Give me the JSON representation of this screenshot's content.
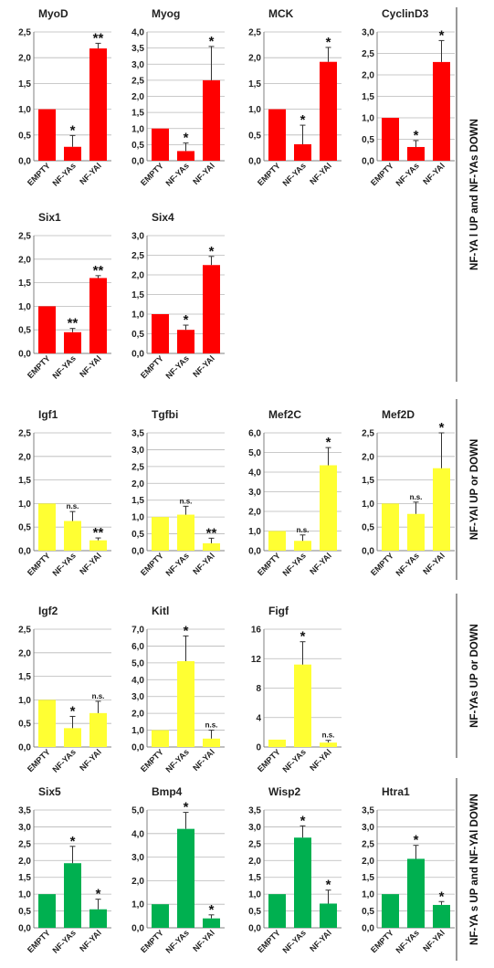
{
  "colors": {
    "red": "#ff0000",
    "yellow": "#ffff33",
    "green": "#00b050"
  },
  "groups": [
    "NF-YA l UP and NF-YAs DOWN",
    "NF-YAl UP or DOWN",
    "NF-YAs UP or DOWN",
    "NF-YA s UP and NF-YAl DOWN"
  ],
  "chart_data": [
    {
      "type": "bar",
      "title": "MyoD",
      "categories": [
        "EMPTY",
        "NF-YAs",
        "NF-YAl"
      ],
      "values": [
        1.0,
        0.27,
        2.18
      ],
      "errors": [
        0,
        0.22,
        0.1
      ],
      "sig": [
        "",
        "*",
        "**"
      ],
      "color": "red",
      "ylim": [
        0,
        2.5
      ],
      "yticks": [
        "0,0",
        "0,5",
        "1,0",
        "1,5",
        "2,0",
        "2,5"
      ]
    },
    {
      "type": "bar",
      "title": "Myog",
      "categories": [
        "EMPTY",
        "NF-YAs",
        "NF-YAl"
      ],
      "values": [
        1.0,
        0.3,
        2.5
      ],
      "errors": [
        0,
        0.25,
        1.05
      ],
      "sig": [
        "",
        "*",
        "*"
      ],
      "color": "red",
      "ylim": [
        0,
        4.0
      ],
      "yticks": [
        "0,0",
        "0,5",
        "1,0",
        "1,5",
        "2,0",
        "2,5",
        "3,0",
        "3,5",
        "4,0"
      ]
    },
    {
      "type": "bar",
      "title": "MCK",
      "categories": [
        "EMPTY",
        "NF-YAs",
        "NF-YAl"
      ],
      "values": [
        1.0,
        0.32,
        1.92
      ],
      "errors": [
        0,
        0.37,
        0.28
      ],
      "sig": [
        "",
        "*",
        "*"
      ],
      "color": "red",
      "ylim": [
        0,
        2.5
      ],
      "yticks": [
        "0,0",
        "0,5",
        "1,0",
        "1,5",
        "2,0",
        "2,5"
      ]
    },
    {
      "type": "bar",
      "title": "CyclinD3",
      "categories": [
        "EMPTY",
        "NF-YAs",
        "NF-YAl"
      ],
      "values": [
        1.0,
        0.32,
        2.3
      ],
      "errors": [
        0,
        0.15,
        0.5
      ],
      "sig": [
        "",
        "*",
        "*"
      ],
      "color": "red",
      "ylim": [
        0,
        3.0
      ],
      "yticks": [
        "0,0",
        "0,5",
        "1,0",
        "1,5",
        "2,0",
        "2,5",
        "3,0"
      ]
    },
    {
      "type": "bar",
      "title": "Six1",
      "categories": [
        "EMPTY",
        "NF-YAs",
        "NF-YAl"
      ],
      "values": [
        1.0,
        0.45,
        1.6
      ],
      "errors": [
        0,
        0.08,
        0.05
      ],
      "sig": [
        "",
        "**",
        "**"
      ],
      "color": "red",
      "ylim": [
        0,
        2.5
      ],
      "yticks": [
        "0,0",
        "0,5",
        "1,0",
        "1,5",
        "2,0",
        "2,5"
      ]
    },
    {
      "type": "bar",
      "title": "Six4",
      "categories": [
        "EMPTY",
        "NF-YAs",
        "NF-YAl"
      ],
      "values": [
        1.0,
        0.6,
        2.25
      ],
      "errors": [
        0,
        0.12,
        0.22
      ],
      "sig": [
        "",
        "*",
        "*"
      ],
      "color": "red",
      "ylim": [
        0,
        3.0
      ],
      "yticks": [
        "0,0",
        "0,5",
        "1,0",
        "1,5",
        "2,0",
        "2,5",
        "3,0"
      ]
    },
    {
      "type": "bar",
      "title": "Igf1",
      "categories": [
        "EMPTY",
        "NF-YAs",
        "NF-YAl"
      ],
      "values": [
        1.0,
        0.63,
        0.22
      ],
      "errors": [
        0,
        0.2,
        0.05
      ],
      "sig": [
        "",
        "n.s.",
        "**"
      ],
      "color": "yellow",
      "ylim": [
        0,
        2.5
      ],
      "yticks": [
        "0,0",
        "0,5",
        "1,0",
        "1,5",
        "2,0",
        "2,5"
      ]
    },
    {
      "type": "bar",
      "title": "Tgfbi",
      "categories": [
        "EMPTY",
        "NF-YAs",
        "NF-YAl"
      ],
      "values": [
        1.0,
        1.07,
        0.22
      ],
      "errors": [
        0,
        0.25,
        0.15
      ],
      "sig": [
        "",
        "n.s.",
        "**"
      ],
      "color": "yellow",
      "ylim": [
        0,
        3.5
      ],
      "yticks": [
        "0,0",
        "0,5",
        "1,0",
        "1,5",
        "2,0",
        "2,5",
        "3,0",
        "3,5"
      ]
    },
    {
      "type": "bar",
      "title": "Mef2C",
      "categories": [
        "EMPTY",
        "NF-YAs",
        "NF-YAl"
      ],
      "values": [
        1.0,
        0.5,
        4.35
      ],
      "errors": [
        0,
        0.3,
        0.9
      ],
      "sig": [
        "",
        "n.s.",
        "*"
      ],
      "color": "yellow",
      "ylim": [
        0,
        6.0
      ],
      "yticks": [
        "0,0",
        "1,0",
        "2,0",
        "3,0",
        "4,0",
        "5,0",
        "6,0"
      ]
    },
    {
      "type": "bar",
      "title": "Mef2D",
      "categories": [
        "EMPTY",
        "NF-YAs",
        "NF-YAl"
      ],
      "values": [
        1.0,
        0.78,
        1.75
      ],
      "errors": [
        0,
        0.25,
        0.75
      ],
      "sig": [
        "",
        "n.s.",
        "*"
      ],
      "color": "yellow",
      "ylim": [
        0,
        2.5
      ],
      "yticks": [
        "0,0",
        "0,5",
        "1,0",
        "1,5",
        "2,0",
        "2,5"
      ]
    },
    {
      "type": "bar",
      "title": "Igf2",
      "categories": [
        "EMPTY",
        "NF-YAs",
        "NF-YAl"
      ],
      "values": [
        1.0,
        0.4,
        0.72
      ],
      "errors": [
        0,
        0.25,
        0.25
      ],
      "sig": [
        "",
        "*",
        "n.s."
      ],
      "color": "yellow",
      "ylim": [
        0,
        2.5
      ],
      "yticks": [
        "0,0",
        "0,5",
        "1,0",
        "1,5",
        "2,0",
        "2,5"
      ]
    },
    {
      "type": "bar",
      "title": "Kitl",
      "categories": [
        "EMPTY",
        "NF-YAs",
        "NF-YAl"
      ],
      "values": [
        1.0,
        5.1,
        0.5
      ],
      "errors": [
        0,
        1.5,
        0.5
      ],
      "sig": [
        "",
        "*",
        "n.s."
      ],
      "color": "yellow",
      "ylim": [
        0,
        7.0
      ],
      "yticks": [
        "0,0",
        "1,0",
        "2,0",
        "3,0",
        "4,0",
        "5,0",
        "6,0",
        "7,0"
      ]
    },
    {
      "type": "bar",
      "title": "Figf",
      "categories": [
        "EMPTY",
        "NF-YAs",
        "NF-YAl"
      ],
      "values": [
        1.0,
        11.2,
        0.6
      ],
      "errors": [
        0,
        3.1,
        0.3
      ],
      "sig": [
        "",
        "*",
        "n.s."
      ],
      "color": "yellow",
      "ylim": [
        0,
        16
      ],
      "yticks": [
        "0",
        "4",
        "8",
        "12",
        "16"
      ]
    },
    {
      "type": "bar",
      "title": "Six5",
      "categories": [
        "EMPTY",
        "NF-YAs",
        "NF-YAl"
      ],
      "values": [
        1.0,
        1.92,
        0.55
      ],
      "errors": [
        0,
        0.5,
        0.3
      ],
      "sig": [
        "",
        "*",
        "*"
      ],
      "color": "green",
      "ylim": [
        0,
        3.5
      ],
      "yticks": [
        "0,0",
        "0,5",
        "1,0",
        "1,5",
        "2,0",
        "2,5",
        "3,0",
        "3,5"
      ]
    },
    {
      "type": "bar",
      "title": "Bmp4",
      "categories": [
        "EMPTY",
        "NF-YAs",
        "NF-YAl"
      ],
      "values": [
        1.0,
        4.2,
        0.4
      ],
      "errors": [
        0,
        0.7,
        0.15
      ],
      "sig": [
        "",
        "*",
        "*"
      ],
      "color": "green",
      "ylim": [
        0,
        5.0
      ],
      "yticks": [
        "0,0",
        "1,0",
        "2,0",
        "3,0",
        "4,0",
        "5,0"
      ]
    },
    {
      "type": "bar",
      "title": "Wisp2",
      "categories": [
        "EMPTY",
        "NF-YAs",
        "NF-YAl"
      ],
      "values": [
        1.0,
        2.68,
        0.72
      ],
      "errors": [
        0,
        0.35,
        0.4
      ],
      "sig": [
        "",
        "*",
        "*"
      ],
      "color": "green",
      "ylim": [
        0,
        3.5
      ],
      "yticks": [
        "0,0",
        "0,5",
        "1,0",
        "1,5",
        "2,0",
        "2,5",
        "3,0",
        "3,5"
      ]
    },
    {
      "type": "bar",
      "title": "Htra1",
      "categories": [
        "EMPTY",
        "NF-YAs",
        "NF-YAl"
      ],
      "values": [
        1.0,
        2.05,
        0.68
      ],
      "errors": [
        0,
        0.4,
        0.1
      ],
      "sig": [
        "",
        "*",
        "*"
      ],
      "color": "green",
      "ylim": [
        0,
        3.5
      ],
      "yticks": [
        "0,0",
        "0,5",
        "1,0",
        "1,5",
        "2,0",
        "2,5",
        "3,0",
        "3,5"
      ]
    }
  ]
}
